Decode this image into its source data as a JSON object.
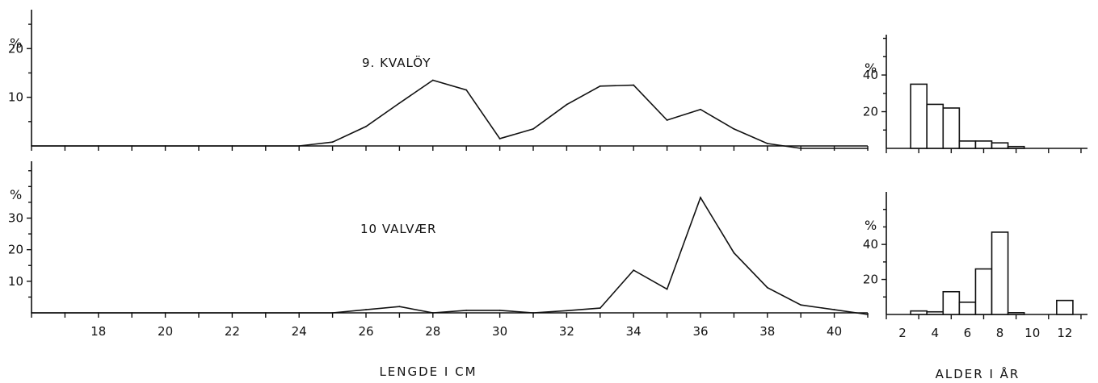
{
  "page": {
    "length_axis_title": "LENGDE I CM",
    "age_axis_title": "ALDER I ÅR"
  },
  "chart_data": [
    {
      "id": "length_kvaloy",
      "type": "line",
      "title": "9. KVALÖY",
      "ylabel": "%",
      "xlabel": "LENGDE I CM",
      "xlim": [
        16,
        41
      ],
      "ylim": [
        0,
        28
      ],
      "yticks": [
        10,
        20
      ],
      "xticks": [
        18,
        20,
        22,
        24,
        26,
        28,
        30,
        32,
        34,
        36,
        38,
        40
      ],
      "show_xtick_labels": false,
      "series": [
        {
          "x": [
            16,
            17,
            18,
            19,
            20,
            21,
            22,
            23,
            24,
            25,
            26,
            27,
            28,
            29,
            30,
            31,
            32,
            33,
            34,
            35,
            36,
            37,
            38,
            39,
            40,
            41
          ],
          "y": [
            0,
            0,
            0,
            0,
            0,
            0,
            0,
            0,
            0,
            0.8,
            4,
            8.8,
            13.5,
            11.5,
            1.5,
            3.5,
            8.5,
            12.3,
            12.5,
            5.3,
            7.5,
            3.5,
            0.5,
            -0.5,
            -0.5,
            -0.5
          ]
        }
      ]
    },
    {
      "id": "length_valvaer",
      "type": "line",
      "title": "10 VALVÆR",
      "ylabel": "%",
      "xlabel": "LENGDE I CM",
      "xlim": [
        16,
        41
      ],
      "ylim": [
        0,
        48
      ],
      "yticks": [
        10,
        20,
        30
      ],
      "xticks": [
        18,
        20,
        22,
        24,
        26,
        28,
        30,
        32,
        34,
        36,
        38,
        40
      ],
      "show_xtick_labels": true,
      "series": [
        {
          "x": [
            16,
            17,
            18,
            19,
            20,
            21,
            22,
            23,
            24,
            25,
            26,
            27,
            28,
            29,
            30,
            31,
            32,
            33,
            34,
            35,
            36,
            37,
            38,
            39,
            40,
            41
          ],
          "y": [
            0,
            0,
            0,
            0,
            0,
            0,
            0,
            0,
            0,
            0,
            1,
            2,
            0,
            0.8,
            0.8,
            0,
            0.7,
            1.5,
            13.5,
            7.5,
            36.5,
            19,
            8,
            2.5,
            1,
            -0.5
          ]
        }
      ]
    },
    {
      "id": "age_kvaloy",
      "type": "bar",
      "title": "",
      "ylabel": "%",
      "xlabel": "ALDER I ÅR",
      "xlim": [
        1,
        13.4
      ],
      "ylim": [
        0,
        62
      ],
      "yticks": [
        20,
        40
      ],
      "xticks": [
        2,
        4,
        6,
        8,
        10,
        12
      ],
      "show_xtick_labels": false,
      "categories": [
        3,
        4,
        5,
        6,
        7,
        8,
        9
      ],
      "values": [
        35,
        24,
        22,
        4,
        4,
        3,
        1
      ]
    },
    {
      "id": "age_valvaer",
      "type": "bar",
      "title": "",
      "ylabel": "%",
      "xlabel": "ALDER I ÅR",
      "xlim": [
        1,
        13.4
      ],
      "ylim": [
        0,
        70
      ],
      "yticks": [
        20,
        40
      ],
      "xticks": [
        2,
        4,
        6,
        8,
        10,
        12
      ],
      "show_xtick_labels": true,
      "categories": [
        3,
        4,
        5,
        6,
        7,
        8,
        9,
        12
      ],
      "values": [
        2,
        1.5,
        13,
        7,
        26,
        47,
        1,
        8
      ]
    }
  ]
}
